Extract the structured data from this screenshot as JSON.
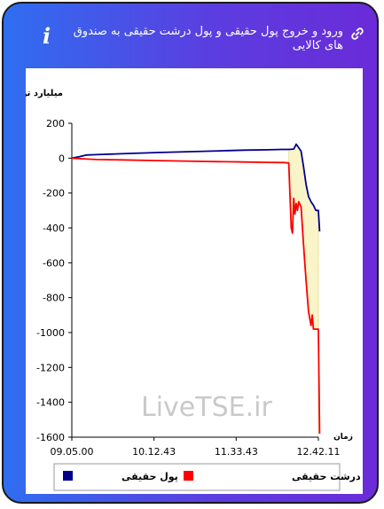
{
  "header": {
    "title": "ورود و خروج پول حقیقی و پول درشت حقیقی به صندوق های کالایی",
    "info_icon": "info-icon",
    "link_icon": "link-icon"
  },
  "watermark": "LiveTSE.ir",
  "colors": {
    "card_gradient_start": "#2f6ef0",
    "card_gradient_end": "#6a2bd8",
    "series_real": "#00008b",
    "series_big_real": "#ff0000",
    "fill_area": "#faf5c8"
  },
  "chart_data": {
    "type": "line",
    "title": "",
    "ylabel": "میلیارد تومان",
    "xlabel": "زمان",
    "ylim": [
      -1600,
      200
    ],
    "yticks": [
      200,
      0,
      -200,
      -400,
      -600,
      -800,
      -1000,
      -1200,
      -1400,
      -1600
    ],
    "xticks": [
      "09.05.00",
      "10.12.43",
      "11.33.43",
      "12.42.11"
    ],
    "grid": false,
    "legend_position": "bottom",
    "shaded_area": "between series from about 12.33 to 12.42",
    "series": [
      {
        "name": "پول حقیقی",
        "color": "#00008b",
        "points": [
          [
            0,
            0
          ],
          [
            3,
            8
          ],
          [
            6,
            18
          ],
          [
            10,
            20
          ],
          [
            20,
            25
          ],
          [
            35,
            32
          ],
          [
            50,
            38
          ],
          [
            60,
            42
          ],
          [
            70,
            46
          ],
          [
            80,
            48
          ],
          [
            85,
            50
          ],
          [
            88,
            50
          ],
          [
            90,
            52
          ],
          [
            91,
            80
          ],
          [
            92,
            60
          ],
          [
            93,
            40
          ],
          [
            94,
            -50
          ],
          [
            95,
            -150
          ],
          [
            96,
            -220
          ],
          [
            97,
            -250
          ],
          [
            98,
            -270
          ],
          [
            99,
            -300
          ],
          [
            100,
            -300
          ],
          [
            100.5,
            -420
          ]
        ]
      },
      {
        "name": "پول درشت حقیقی",
        "color": "#ff0000",
        "points": [
          [
            0,
            0
          ],
          [
            3,
            -3
          ],
          [
            10,
            -8
          ],
          [
            20,
            -10
          ],
          [
            35,
            -14
          ],
          [
            50,
            -18
          ],
          [
            60,
            -20
          ],
          [
            70,
            -22
          ],
          [
            80,
            -24
          ],
          [
            86,
            -25
          ],
          [
            88,
            -28
          ],
          [
            89,
            -400
          ],
          [
            89.5,
            -430
          ],
          [
            90,
            -230
          ],
          [
            90.5,
            -320
          ],
          [
            91,
            -260
          ],
          [
            91.5,
            -300
          ],
          [
            92,
            -250
          ],
          [
            93,
            -280
          ],
          [
            94,
            -500
          ],
          [
            95,
            -700
          ],
          [
            96,
            -880
          ],
          [
            97,
            -960
          ],
          [
            97.5,
            -900
          ],
          [
            98,
            -980
          ],
          [
            100,
            -980
          ],
          [
            100.5,
            -1580
          ]
        ]
      }
    ]
  }
}
